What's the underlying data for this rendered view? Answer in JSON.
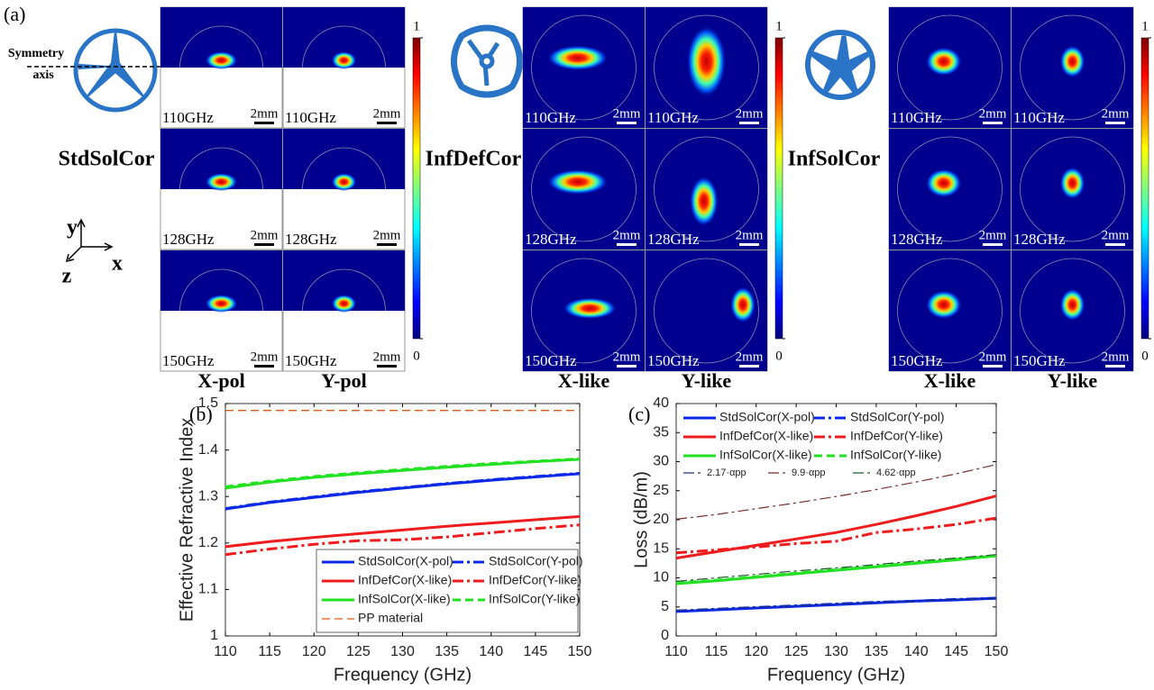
{
  "panel_a": {
    "label": "(a)",
    "symmetry_label": [
      "Symmetry",
      "axis"
    ],
    "axes": [
      "y",
      "x",
      "z"
    ],
    "scale_bar": "2mm",
    "colorbar_ticks": [
      0,
      1
    ],
    "groups": [
      {
        "name": "StdSolCor",
        "columns": [
          "X-pol",
          "Y-pol"
        ],
        "frequencies": [
          "110GHz",
          "128GHz",
          "150GHz"
        ]
      },
      {
        "name": "InfDefCor",
        "columns": [
          "X-like",
          "Y-like"
        ],
        "frequencies": [
          "110GHz",
          "128GHz",
          "150GHz"
        ]
      },
      {
        "name": "InfSolCor",
        "columns": [
          "X-like",
          "Y-like"
        ],
        "frequencies": [
          "110GHz",
          "128GHz",
          "150GHz"
        ]
      }
    ]
  },
  "chart_data": [
    {
      "type": "line",
      "label": "(b)",
      "x_label": "Frequency (GHz)",
      "y_label": "Effective Refractive Index",
      "x": [
        110,
        115,
        120,
        125,
        130,
        135,
        140,
        145,
        150
      ],
      "xlim": [
        110,
        150
      ],
      "xticks": [
        110,
        115,
        120,
        125,
        130,
        135,
        140,
        145,
        150
      ],
      "ylim": [
        1,
        1.5
      ],
      "yticks": [
        1,
        1.1,
        1.2,
        1.3,
        1.4,
        1.5
      ],
      "legend": "lower right",
      "series": [
        {
          "name": "StdSolCor(X-pol)",
          "color": "#0a28e6",
          "dash": "solid",
          "linewidth": 3,
          "values": [
            1.273,
            1.287,
            1.298,
            1.309,
            1.318,
            1.327,
            1.335,
            1.342,
            1.349
          ]
        },
        {
          "name": "StdSolCor(Y-pol)",
          "color": "#0a28e6",
          "dash": "dashdot",
          "linewidth": 3,
          "values": [
            1.274,
            1.288,
            1.299,
            1.31,
            1.319,
            1.328,
            1.336,
            1.343,
            1.35
          ]
        },
        {
          "name": "InfDefCor(X-like)",
          "color": "#ee1c1c",
          "dash": "solid",
          "linewidth": 3,
          "values": [
            1.192,
            1.203,
            1.212,
            1.22,
            1.228,
            1.236,
            1.243,
            1.25,
            1.257
          ]
        },
        {
          "name": "InfDefCor(Y-like)",
          "color": "#ee1c1c",
          "dash": "dashdot",
          "linewidth": 3,
          "values": [
            1.175,
            1.187,
            1.197,
            1.205,
            1.207,
            1.213,
            1.222,
            1.231,
            1.239
          ]
        },
        {
          "name": "InfSolCor(X-like)",
          "color": "#22e022",
          "dash": "solid",
          "linewidth": 3,
          "values": [
            1.318,
            1.331,
            1.341,
            1.349,
            1.356,
            1.363,
            1.369,
            1.375,
            1.38
          ]
        },
        {
          "name": "InfSolCor(Y-like)",
          "color": "#22e022",
          "dash": "dashed",
          "linewidth": 3,
          "values": [
            1.321,
            1.333,
            1.343,
            1.351,
            1.358,
            1.365,
            1.371,
            1.376,
            1.381
          ]
        },
        {
          "name": "PP material",
          "color": "#e05a14",
          "dash": "dashed",
          "linewidth": 1.3,
          "values": [
            1.485,
            1.485,
            1.485,
            1.485,
            1.485,
            1.485,
            1.485,
            1.485,
            1.485
          ]
        }
      ]
    },
    {
      "type": "line",
      "label": "(c)",
      "x_label": "Frequency (GHz)",
      "y_label": "Loss (dB/m)",
      "x": [
        110,
        115,
        120,
        125,
        130,
        135,
        140,
        145,
        150
      ],
      "xlim": [
        110,
        150
      ],
      "xticks": [
        110,
        115,
        120,
        125,
        130,
        135,
        140,
        145,
        150
      ],
      "ylim": [
        0,
        40
      ],
      "yticks": [
        0,
        5,
        10,
        15,
        20,
        25,
        30,
        35,
        40
      ],
      "legend": "upper left",
      "series": [
        {
          "name": "StdSolCor(X-pol)",
          "color": "#0a28e6",
          "dash": "solid",
          "linewidth": 3,
          "values": [
            4.2,
            4.5,
            4.8,
            5.1,
            5.4,
            5.7,
            6.0,
            6.2,
            6.5
          ]
        },
        {
          "name": "StdSolCor(Y-pol)",
          "color": "#0a28e6",
          "dash": "dashdot",
          "linewidth": 3,
          "values": [
            4.3,
            4.6,
            4.9,
            5.2,
            5.5,
            5.8,
            6.0,
            6.3,
            6.5
          ]
        },
        {
          "name": "InfDefCor(X-like)",
          "color": "#ee1c1c",
          "dash": "solid",
          "linewidth": 3,
          "values": [
            13.4,
            14.5,
            15.6,
            16.7,
            17.8,
            19.2,
            20.7,
            22.3,
            24.1
          ]
        },
        {
          "name": "InfDefCor(Y-like)",
          "color": "#ee1c1c",
          "dash": "dashdot",
          "linewidth": 3,
          "values": [
            14.3,
            14.8,
            15.3,
            15.9,
            16.3,
            17.8,
            18.4,
            19.2,
            20.3
          ]
        },
        {
          "name": "InfSolCor(X-like)",
          "color": "#22e022",
          "dash": "solid",
          "linewidth": 3,
          "values": [
            9.0,
            9.5,
            10.1,
            10.7,
            11.3,
            11.9,
            12.5,
            13.1,
            13.8
          ]
        },
        {
          "name": "InfSolCor(Y-like)",
          "color": "#22e022",
          "dash": "dashed",
          "linewidth": 3,
          "values": [
            9.1,
            9.6,
            10.2,
            10.8,
            11.4,
            12.0,
            12.6,
            13.2,
            13.8
          ]
        },
        {
          "name": "2.17·αpp",
          "color": "#1a2f7a",
          "dash": "dashdot",
          "linewidth": 1.2,
          "values": [
            4.4,
            4.7,
            5.0,
            5.2,
            5.5,
            5.8,
            6.0,
            6.3,
            6.5
          ]
        },
        {
          "name": "9.9·αpp",
          "color": "#7a2e2e",
          "dash": "dashdot",
          "linewidth": 1.2,
          "values": [
            20.1,
            20.9,
            21.9,
            22.9,
            24.0,
            25.2,
            26.5,
            27.9,
            29.5
          ]
        },
        {
          "name": "4.62·αpp",
          "color": "#1f5a2a",
          "dash": "dashdot",
          "linewidth": 1.2,
          "values": [
            9.4,
            10.0,
            10.6,
            11.2,
            11.7,
            12.3,
            12.9,
            13.4,
            14.0
          ]
        }
      ]
    }
  ]
}
